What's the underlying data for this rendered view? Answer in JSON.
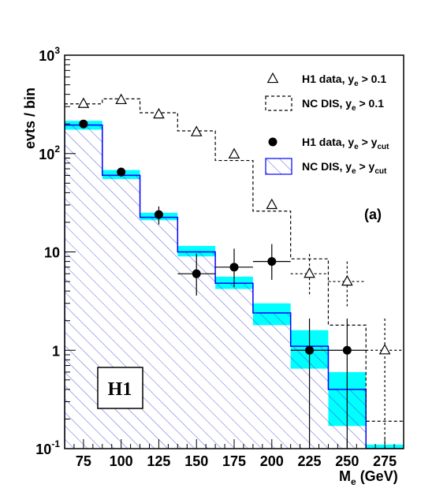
{
  "chart_data": {
    "type": "histogram",
    "ylabel": "evts / bin",
    "xlabel_main": "M",
    "xlabel_sub": "e",
    "xlabel_unit": " (GeV)",
    "y_scale": "log",
    "ylim": [
      0.1,
      1000
    ],
    "xlim": [
      62.5,
      287.5
    ],
    "x_ticks": [
      "75",
      "100",
      "125",
      "150",
      "175",
      "200",
      "225",
      "250",
      "275"
    ],
    "y_ticks": [
      {
        "base": "10",
        "exp": "3"
      },
      {
        "base": "10",
        "exp": "2"
      },
      {
        "base": "10",
        "exp": ""
      },
      {
        "base": "1",
        "exp": ""
      },
      {
        "base": "10",
        "exp": "-1"
      }
    ],
    "bin_edges": [
      62.5,
      87.5,
      112.5,
      137.5,
      162.5,
      187.5,
      212.5,
      237.5,
      262.5,
      287.5
    ],
    "panel_tag": "(a)",
    "experiment_badge": "H1",
    "colors": {
      "mc_cut_line": "#0000ff",
      "hatch": "#3a3ad8",
      "uncertainty_band": "#00ffff",
      "dashed": "#000000",
      "data": "#000000"
    },
    "legend": [
      {
        "marker": "open-triangle",
        "text": "H1 data, y",
        "sub": "e",
        "rel": " > 0.1",
        "sub2": ""
      },
      {
        "marker": "dashed-box",
        "text": "NC DIS, y",
        "sub": "e",
        "rel": " > 0.1",
        "sub2": ""
      },
      {
        "marker": "filled-circle",
        "text": "H1 data, y",
        "sub": "e",
        "rel": " > y",
        "sub2": "cut"
      },
      {
        "marker": "hatched-box",
        "text": "NC DIS, y",
        "sub": "e",
        "rel": " > y",
        "sub2": "cut"
      }
    ],
    "series": [
      {
        "name": "H1 data, ye > 0.1",
        "style": "open-triangle",
        "x": [
          75,
          100,
          125,
          150,
          175,
          200,
          225,
          250,
          275
        ],
        "y": [
          320,
          350,
          250,
          165,
          98,
          30,
          6,
          5,
          1
        ],
        "err_lo": [
          0,
          0,
          0,
          0,
          0,
          0,
          2.5,
          2.2,
          0.99
        ],
        "err_hi": [
          0,
          0,
          0,
          0,
          0,
          0,
          3.5,
          3.0,
          1.1
        ]
      },
      {
        "name": "NC DIS, ye > 0.1",
        "style": "dashed-histogram",
        "values": [
          320,
          360,
          260,
          170,
          85,
          26,
          8.5,
          1.8,
          0.19
        ]
      },
      {
        "name": "H1 data, ye > ycut",
        "style": "filled-circle",
        "x": [
          75,
          100,
          125,
          150,
          175,
          200,
          225,
          250
        ],
        "y": [
          200,
          65,
          24,
          6,
          7,
          8,
          1,
          1
        ],
        "err_lo": [
          15,
          7,
          5,
          2.4,
          2.6,
          2.8,
          0.99,
          0.99
        ],
        "err_hi": [
          15,
          7,
          5,
          3.6,
          3.8,
          4.0,
          1.1,
          1.1
        ]
      },
      {
        "name": "NC DIS, ye > ycut",
        "style": "hatched-histogram",
        "values": [
          195,
          60,
          22.5,
          10,
          4.8,
          2.4,
          1.1,
          0.4,
          0.1
        ],
        "band_lo": [
          175,
          55,
          21,
          9,
          4.2,
          1.8,
          0.65,
          0.17,
          0.09
        ],
        "band_hi": [
          215,
          68,
          25,
          11.5,
          5.6,
          3.0,
          1.6,
          0.6,
          0.11
        ]
      }
    ]
  }
}
